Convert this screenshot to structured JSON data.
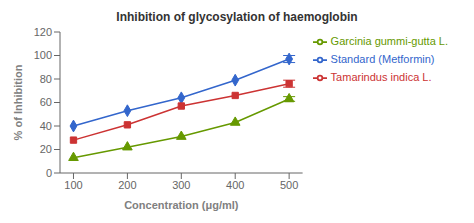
{
  "chart_data": {
    "type": "line",
    "title": "Inhibition of glycosylation of haemoglobin",
    "xlabel": "Concentration (μg/ml)",
    "ylabel": "% of Inhibition",
    "x": [
      100,
      200,
      300,
      400,
      500
    ],
    "series": [
      {
        "name": "Standard (Metformin)",
        "color": "#3366CC",
        "values": [
          40,
          53,
          64,
          79,
          97
        ],
        "yerr": [
          0,
          0,
          0,
          0,
          3
        ],
        "marker": "diamond",
        "line_style": "solid"
      },
      {
        "name": "Tamarindus indica L.",
        "color": "#CC3333",
        "values": [
          28,
          41,
          57,
          66,
          76
        ],
        "yerr": [
          0,
          0,
          0,
          0,
          3
        ],
        "marker": "square",
        "line_style": "solid"
      },
      {
        "name": "Garcinia gummi-gutta L.",
        "color": "#669900",
        "values": [
          13,
          22,
          31,
          43,
          63
        ],
        "yerr": [
          0,
          0,
          0,
          0,
          2
        ],
        "marker": "triangle",
        "line_style": "solid"
      }
    ],
    "xlim": [
      75,
      525
    ],
    "xticks": [
      100,
      200,
      300,
      400,
      500
    ],
    "ylim": [
      0,
      120
    ],
    "yticks": [
      0,
      20,
      40,
      60,
      80,
      100,
      120
    ],
    "grid": false,
    "legend": "right"
  }
}
